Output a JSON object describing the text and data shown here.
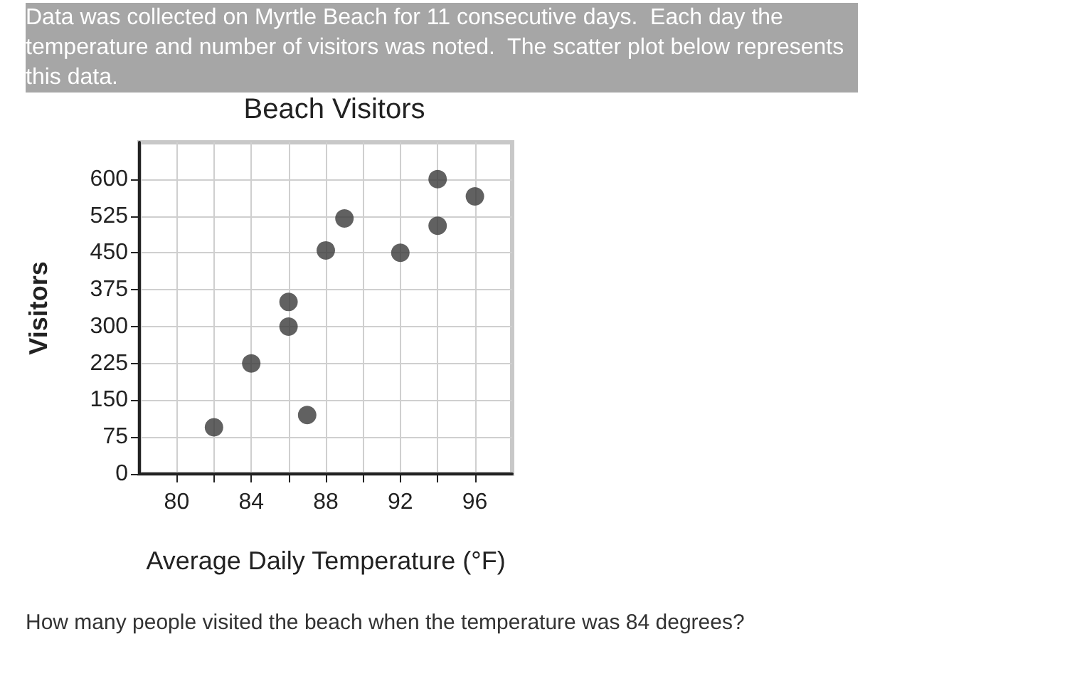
{
  "chart_data": {
    "type": "scatter",
    "title": "Beach Visitors",
    "xlabel": "Average Daily Temperature (°F)",
    "ylabel": "Visitors",
    "annotations": [
      "Data was collected on Myrtle Beach for 11 consecutive days.  Each day the temperature and number of visitors was noted.  The scatter plot below represents this data.",
      "How many people visited the beach when the temperature was 84 degrees?"
    ],
    "x": [
      82,
      84,
      86,
      86,
      87,
      88,
      89,
      92,
      94,
      94,
      96
    ],
    "series": [
      {
        "color": "#3a3a3a",
        "values": [
          95,
          225,
          350,
          300,
          120,
          455,
          520,
          450,
          600,
          505,
          565
        ]
      }
    ],
    "xlim": [
      78,
      98
    ],
    "xticks": [
      80,
      {
        "value": 82,
        "label": null
      },
      84,
      {
        "value": 86,
        "label": null
      },
      88,
      {
        "value": 90,
        "label": null
      },
      92,
      {
        "value": 94,
        "label": null
      },
      96
    ],
    "ylim": [
      0,
      675
    ],
    "yticks": [
      0,
      75,
      150,
      225,
      300,
      375,
      450,
      525,
      600
    ],
    "grid": true,
    "marker": "circle"
  }
}
